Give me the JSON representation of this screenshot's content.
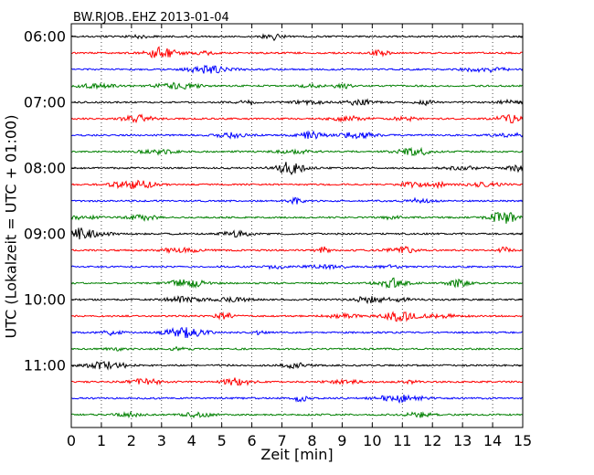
{
  "chart_data": {
    "type": "line",
    "title": "BW.RJOB..EHZ 2013-01-04",
    "xlabel": "Zeit  [min]",
    "ylabel": "UTC (Lokalzeit = UTC + 01:00)",
    "xlim": [
      0,
      15
    ],
    "xticks": [
      0,
      1,
      2,
      3,
      4,
      5,
      6,
      7,
      8,
      9,
      10,
      11,
      12,
      13,
      14,
      15
    ],
    "yticks": [
      "06:00",
      "07:00",
      "08:00",
      "09:00",
      "10:00",
      "11:00"
    ],
    "vertical_grid": "dotted",
    "trace_interval_min": 15,
    "start_time": "06:00",
    "color_cycle": [
      "#000000",
      "#ff0000",
      "#0000ff",
      "#008000"
    ],
    "traces": [
      {
        "start": "06:00",
        "color": "#000000"
      },
      {
        "start": "06:15",
        "color": "#ff0000"
      },
      {
        "start": "06:30",
        "color": "#0000ff"
      },
      {
        "start": "06:45",
        "color": "#008000"
      },
      {
        "start": "07:00",
        "color": "#000000"
      },
      {
        "start": "07:15",
        "color": "#ff0000"
      },
      {
        "start": "07:30",
        "color": "#0000ff"
      },
      {
        "start": "07:45",
        "color": "#008000"
      },
      {
        "start": "08:00",
        "color": "#000000"
      },
      {
        "start": "08:15",
        "color": "#ff0000"
      },
      {
        "start": "08:30",
        "color": "#0000ff"
      },
      {
        "start": "08:45",
        "color": "#008000"
      },
      {
        "start": "09:00",
        "color": "#000000"
      },
      {
        "start": "09:15",
        "color": "#ff0000"
      },
      {
        "start": "09:30",
        "color": "#0000ff"
      },
      {
        "start": "09:45",
        "color": "#008000"
      },
      {
        "start": "10:00",
        "color": "#000000"
      },
      {
        "start": "10:15",
        "color": "#ff0000"
      },
      {
        "start": "10:30",
        "color": "#0000ff"
      },
      {
        "start": "10:45",
        "color": "#008000"
      },
      {
        "start": "11:00",
        "color": "#000000"
      },
      {
        "start": "11:15",
        "color": "#ff0000"
      },
      {
        "start": "11:30",
        "color": "#0000ff"
      },
      {
        "start": "11:45",
        "color": "#008000"
      }
    ]
  }
}
